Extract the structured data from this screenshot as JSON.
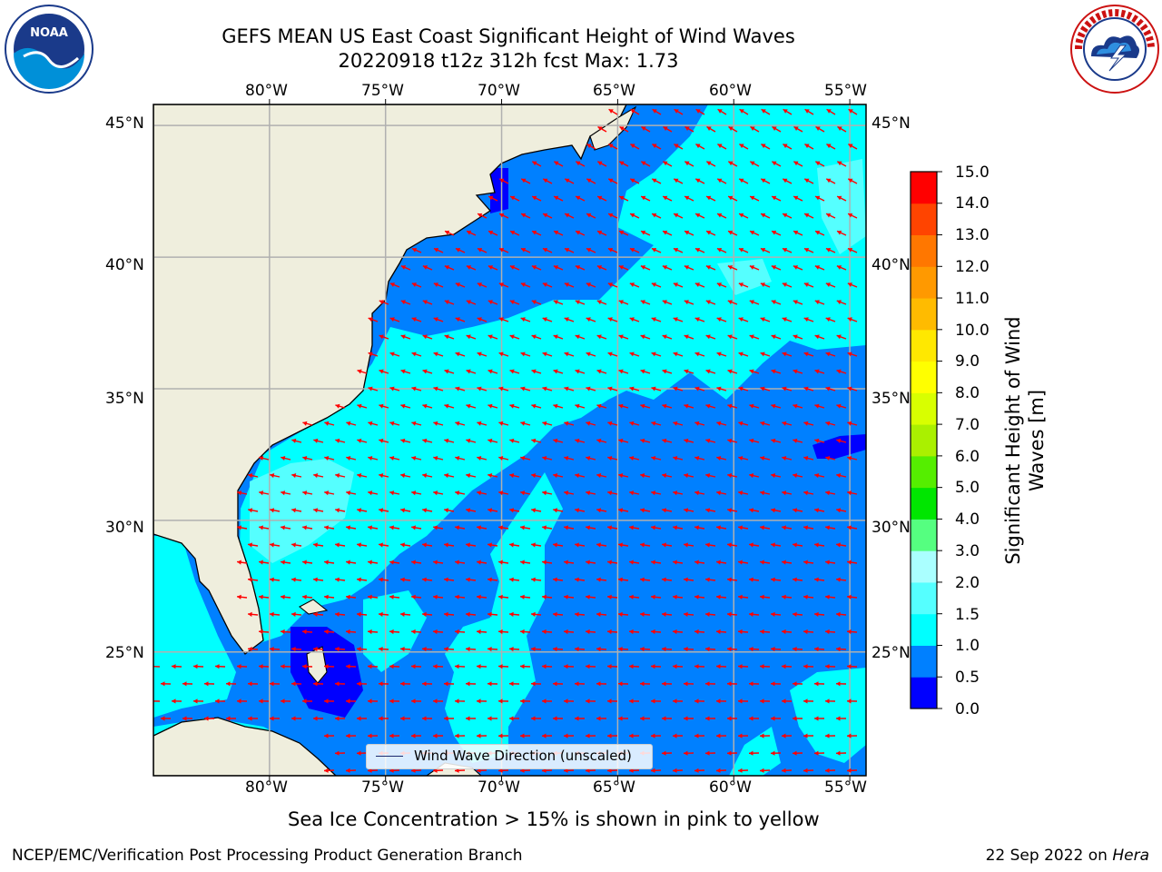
{
  "title": {
    "line1": "GEFS MEAN US East Coast Significant Height of Wind Waves",
    "line2": "20220918 t12z 312h fcst   Max: 1.73"
  },
  "logos": {
    "left": {
      "text": "NOAA"
    },
    "right": {
      "text": "NATIONAL WEATHER SERVICE"
    }
  },
  "map": {
    "lon_labels": [
      "80°W",
      "75°W",
      "70°W",
      "65°W",
      "60°W",
      "55°W"
    ],
    "lat_labels": [
      "45°N",
      "40°N",
      "35°N",
      "30°N",
      "25°N"
    ],
    "lon_range": [
      -85,
      -54.3
    ],
    "lat_range": [
      20.3,
      45.8
    ],
    "land_color": "#efeedd",
    "gridline_color": "#b0b0b0",
    "arrow_color": "#ff0000",
    "legend_label": "Wind Wave Direction (unscaled)"
  },
  "colorbar": {
    "title_line1": "Significant Height of Wind",
    "title_line2": "Waves [m]",
    "tick_labels": [
      "15.0",
      "14.0",
      "13.0",
      "12.0",
      "11.0",
      "10.0",
      "9.0",
      "8.0",
      "7.0",
      "6.0",
      "5.0",
      "4.0",
      "3.0",
      "2.0",
      "1.5",
      "1.0",
      "0.5",
      "0.0"
    ],
    "levels": [
      0.0,
      0.5,
      1.0,
      1.5,
      2.0,
      3.0,
      4.0,
      5.0,
      6.0,
      7.0,
      8.0,
      9.0,
      10.0,
      11.0,
      12.0,
      13.0,
      14.0,
      15.0
    ],
    "colors": [
      "#0000ff",
      "#0080ff",
      "#00ffff",
      "#55ffff",
      "#aaffff",
      "#55ff80",
      "#00e600",
      "#55ee00",
      "#aaf000",
      "#d8ff00",
      "#ffff00",
      "#ffe800",
      "#ffbb00",
      "#ff9900",
      "#ff7700",
      "#ff4400",
      "#ff0000"
    ]
  },
  "caption": "Sea Ice Concentration > 15% is shown in pink to yellow",
  "footer": {
    "left": "NCEP/EMC/Verification Post Processing Product Generation Branch",
    "right_date": "22 Sep 2022 on ",
    "right_machine": "Hera"
  }
}
